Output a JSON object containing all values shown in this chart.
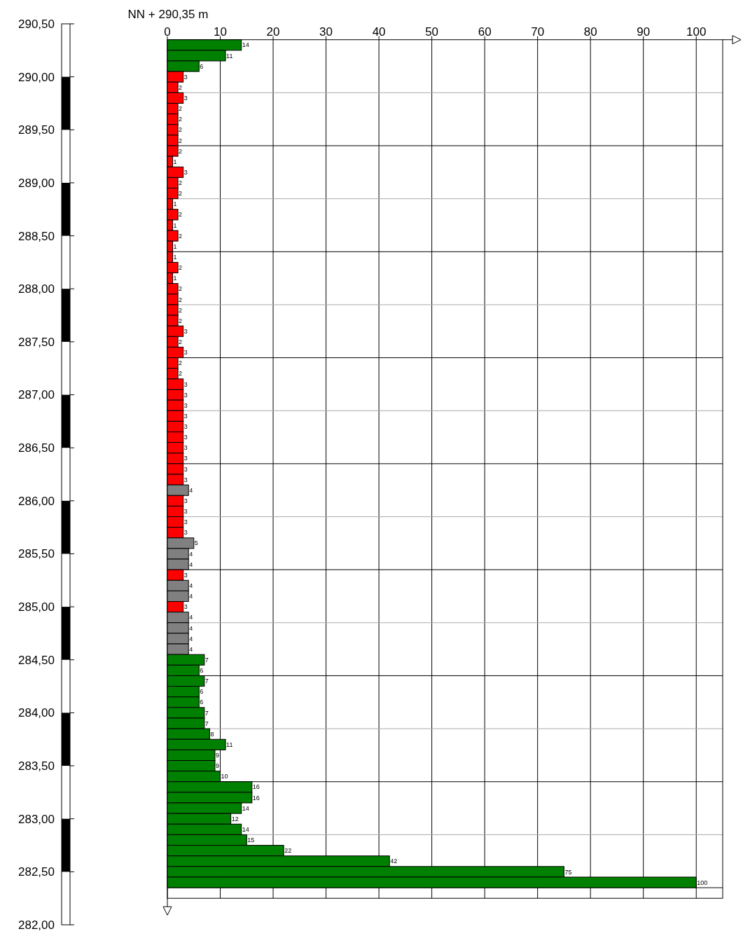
{
  "chart_data": {
    "type": "bar",
    "orientation": "horizontal",
    "title": "NN + 290,35 m",
    "x": [
      290.3,
      290.2,
      290.1,
      290.0,
      289.9,
      289.8,
      289.7,
      289.6,
      289.5,
      289.4,
      289.3,
      289.2,
      289.1,
      289.0,
      288.9,
      288.8,
      288.7,
      288.6,
      288.5,
      288.4,
      288.3,
      288.2,
      288.1,
      288.0,
      287.9,
      287.8,
      287.7,
      287.6,
      287.5,
      287.4,
      287.3,
      287.2,
      287.1,
      287.0,
      286.9,
      286.8,
      286.7,
      286.6,
      286.5,
      286.4,
      286.3,
      286.2,
      286.1,
      286.0,
      285.9,
      285.8,
      285.7,
      285.6,
      285.5,
      285.4,
      285.3,
      285.2,
      285.1,
      285.0,
      284.9,
      284.8,
      284.7,
      284.6,
      284.5,
      284.4,
      284.3,
      284.2,
      284.1,
      284.0,
      283.9,
      283.8,
      283.7,
      283.6,
      283.5,
      283.4,
      283.3,
      283.2,
      283.1,
      283.0,
      282.9,
      282.8,
      282.7,
      282.6,
      282.5,
      282.4
    ],
    "values": [
      14,
      11,
      6,
      3,
      2,
      3,
      2,
      2,
      2,
      2,
      2,
      1,
      3,
      2,
      2,
      1,
      2,
      1,
      2,
      1,
      1,
      2,
      1,
      2,
      2,
      2,
      2,
      3,
      2,
      3,
      2,
      2,
      3,
      3,
      3,
      3,
      3,
      3,
      3,
      3,
      3,
      3,
      4,
      3,
      3,
      3,
      3,
      5,
      4,
      4,
      3,
      4,
      4,
      3,
      4,
      4,
      4,
      4,
      7,
      6,
      7,
      6,
      6,
      7,
      7,
      8,
      11,
      9,
      9,
      10,
      16,
      16,
      14,
      12,
      14,
      15,
      22,
      42,
      75,
      100
    ],
    "colors": [
      "#008000",
      "#008000",
      "#008000",
      "#ff0000",
      "#ff0000",
      "#ff0000",
      "#ff0000",
      "#ff0000",
      "#ff0000",
      "#ff0000",
      "#ff0000",
      "#ff0000",
      "#ff0000",
      "#ff0000",
      "#ff0000",
      "#ff0000",
      "#ff0000",
      "#ff0000",
      "#ff0000",
      "#ff0000",
      "#ff0000",
      "#ff0000",
      "#ff0000",
      "#ff0000",
      "#ff0000",
      "#ff0000",
      "#ff0000",
      "#ff0000",
      "#ff0000",
      "#ff0000",
      "#ff0000",
      "#ff0000",
      "#ff0000",
      "#ff0000",
      "#ff0000",
      "#ff0000",
      "#ff0000",
      "#ff0000",
      "#ff0000",
      "#ff0000",
      "#ff0000",
      "#ff0000",
      "#808080",
      "#ff0000",
      "#ff0000",
      "#ff0000",
      "#ff0000",
      "#808080",
      "#808080",
      "#808080",
      "#ff0000",
      "#808080",
      "#808080",
      "#ff0000",
      "#808080",
      "#808080",
      "#808080",
      "#808080",
      "#008000",
      "#008000",
      "#008000",
      "#008000",
      "#008000",
      "#008000",
      "#008000",
      "#008000",
      "#008000",
      "#008000",
      "#008000",
      "#008000",
      "#008000",
      "#008000",
      "#008000",
      "#008000",
      "#008000",
      "#008000",
      "#008000",
      "#008000",
      "#008000",
      "#008000"
    ],
    "xlim": [
      0,
      105
    ],
    "xticks": [
      0,
      10,
      20,
      30,
      40,
      50,
      60,
      70,
      80,
      90,
      100
    ],
    "ylim": [
      282.0,
      290.5
    ],
    "yticks": [
      {
        "value": 282.0,
        "label": "282,00"
      },
      {
        "value": 282.5,
        "label": "282,50"
      },
      {
        "value": 283.0,
        "label": "283,00"
      },
      {
        "value": 283.5,
        "label": "283,50"
      },
      {
        "value": 284.0,
        "label": "284,00"
      },
      {
        "value": 284.5,
        "label": "284,50"
      },
      {
        "value": 285.0,
        "label": "285,00"
      },
      {
        "value": 285.5,
        "label": "285,50"
      },
      {
        "value": 286.0,
        "label": "286,00"
      },
      {
        "value": 286.5,
        "label": "286,50"
      },
      {
        "value": 287.0,
        "label": "287,00"
      },
      {
        "value": 287.5,
        "label": "287,50"
      },
      {
        "value": 288.0,
        "label": "288,00"
      },
      {
        "value": 288.5,
        "label": "288,50"
      },
      {
        "value": 289.0,
        "label": "289,00"
      },
      {
        "value": 289.5,
        "label": "289,50"
      },
      {
        "value": 290.0,
        "label": "290,00"
      },
      {
        "value": 290.5,
        "label": "290,50"
      }
    ],
    "grid": true,
    "data_labels": true
  }
}
